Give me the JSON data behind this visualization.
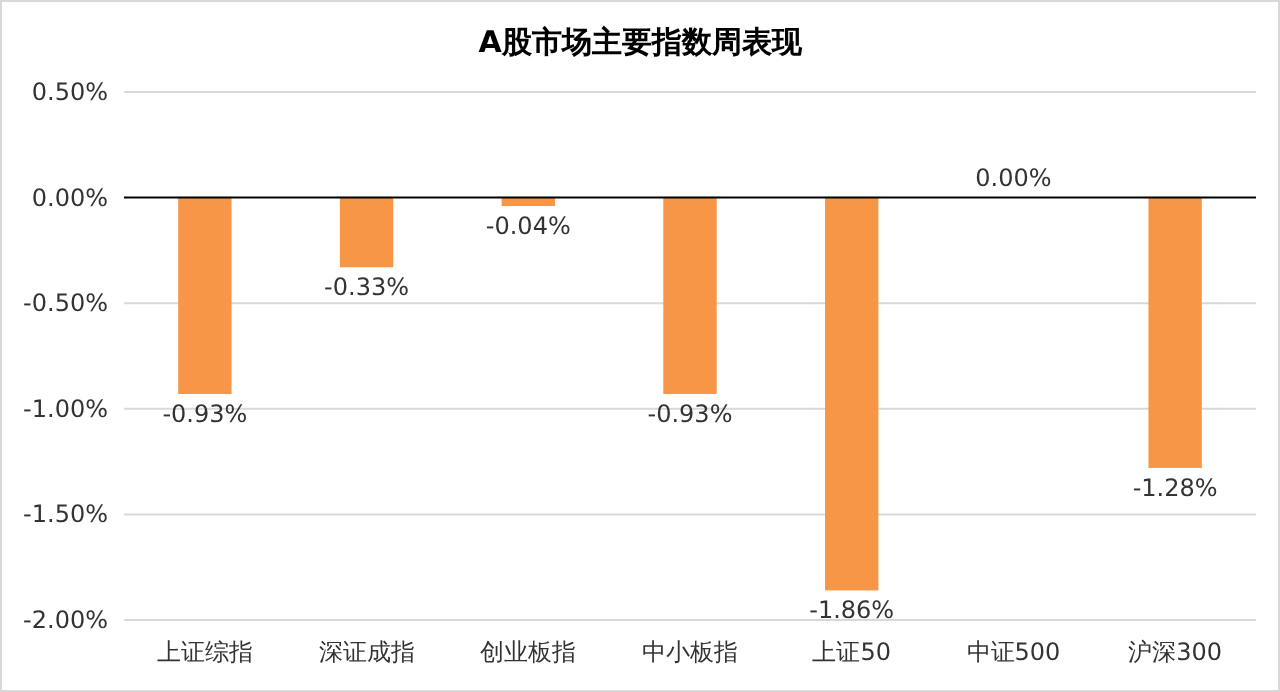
{
  "chart_data": {
    "type": "bar",
    "title": "A股市场主要指数周表现",
    "categories": [
      "上证综指",
      "深证成指",
      "创业板指",
      "中小板指",
      "上证50",
      "中证500",
      "沪深300"
    ],
    "values": [
      -0.93,
      -0.33,
      -0.04,
      -0.93,
      -1.86,
      0.0,
      -1.28
    ],
    "value_labels": [
      "-0.93%",
      "-0.33%",
      "-0.04%",
      "-0.93%",
      "-1.86%",
      "0.00%",
      "-1.28%"
    ],
    "color": "#f79646",
    "ylim": [
      -2.0,
      0.5
    ],
    "yticks": [
      {
        "value": 0.5,
        "label": "0.50%"
      },
      {
        "value": 0,
        "label": "0.00%"
      },
      {
        "value": -0.5,
        "label": "-0.50%"
      },
      {
        "value": -1.0,
        "label": "-1.00%"
      },
      {
        "value": -1.5,
        "label": "-1.50%"
      },
      {
        "value": -2.0,
        "label": "-2.00%"
      }
    ],
    "grid": "y"
  }
}
